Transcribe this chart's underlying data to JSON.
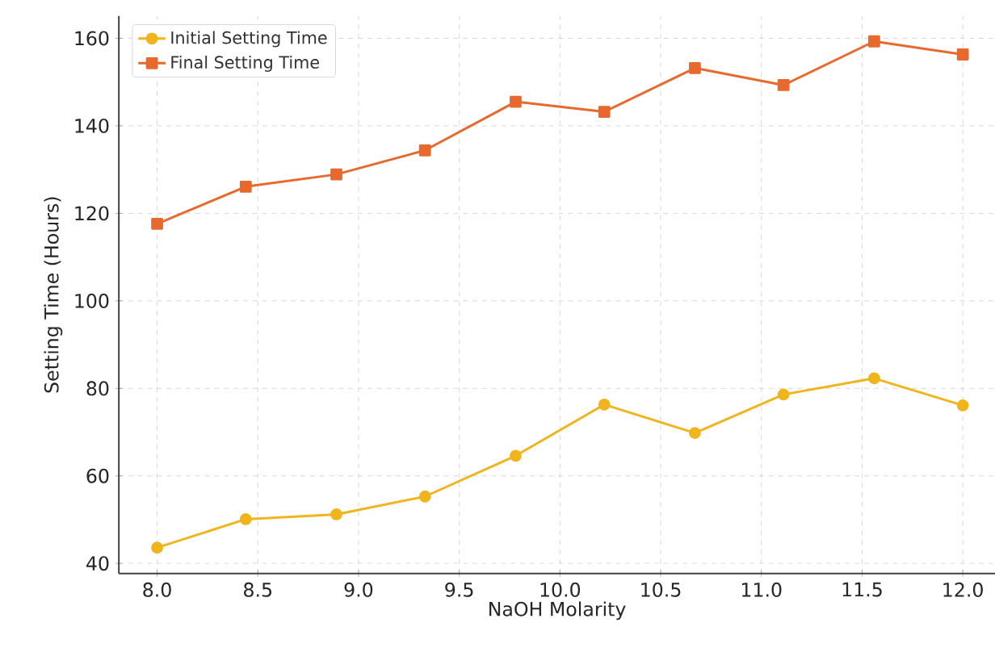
{
  "chart_data": {
    "type": "line",
    "xlabel": "NaOH Molarity",
    "ylabel": "Setting Time (Hours)",
    "x": [
      8.0,
      8.44,
      8.89,
      9.33,
      9.78,
      10.22,
      10.67,
      11.11,
      11.56,
      12.0
    ],
    "series": [
      {
        "name": "Initial Setting Time",
        "color": "#f0b41c",
        "marker": "circle",
        "values": [
          43.6,
          50.1,
          51.2,
          55.3,
          64.6,
          76.3,
          69.8,
          78.6,
          82.3,
          76.1
        ]
      },
      {
        "name": "Final Setting Time",
        "color": "#e8692d",
        "marker": "square",
        "values": [
          117.6,
          126.1,
          128.9,
          134.4,
          145.5,
          143.2,
          153.2,
          149.3,
          159.3,
          156.3
        ]
      }
    ],
    "xlim": [
      7.81,
      12.16
    ],
    "ylim": [
      37.7,
      165.1
    ],
    "xticks": [
      {
        "value": 8,
        "label": "8.0"
      },
      {
        "value": 8.5,
        "label": "8.5"
      },
      {
        "value": 9,
        "label": "9.0"
      },
      {
        "value": 9.5,
        "label": "9.5"
      },
      {
        "value": 10,
        "label": "10.0"
      },
      {
        "value": 10.5,
        "label": "10.5"
      },
      {
        "value": 11,
        "label": "11.0"
      },
      {
        "value": 11.5,
        "label": "11.5"
      },
      {
        "value": 12,
        "label": "12.0"
      }
    ],
    "yticks": [
      40,
      60,
      80,
      100,
      120,
      140,
      160
    ],
    "grid": true,
    "legend": "top left",
    "line_style": "solid"
  }
}
